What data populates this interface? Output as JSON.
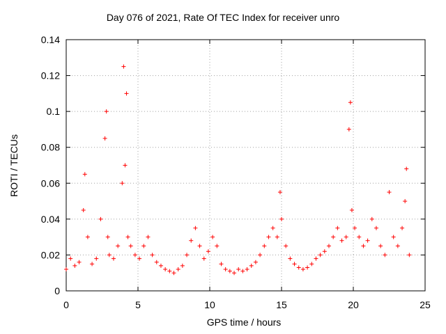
{
  "chart_data": {
    "type": "scatter",
    "title": "Day 076 of 2021, Rate Of TEC Index for receiver unro",
    "xlabel": "GPS time / hours",
    "ylabel": "ROTI / TECUs",
    "xlim": [
      0,
      25
    ],
    "ylim": [
      0,
      0.14
    ],
    "xticks": [
      0,
      5,
      10,
      15,
      20,
      25
    ],
    "yticks": [
      0,
      0.02,
      0.04,
      0.06,
      0.08,
      0.1,
      0.12,
      0.14
    ],
    "xtick_labels": [
      "0",
      "5",
      "10",
      "15",
      "20",
      "25"
    ],
    "ytick_labels": [
      "0",
      "0.02",
      "0.04",
      "0.06",
      "0.08",
      "0.1",
      "0.12",
      "0.14"
    ],
    "grid": true,
    "marker": "+",
    "color": "#ff0000",
    "series": [
      {
        "x": [
          0.0,
          0.3,
          0.6,
          0.9,
          1.2,
          1.3,
          1.5,
          1.8,
          2.1,
          2.4,
          2.7,
          2.8,
          2.9,
          3.0,
          3.3,
          3.6,
          3.9,
          4.0,
          4.1,
          4.2,
          4.3,
          4.5,
          4.8,
          5.1,
          5.4,
          5.7,
          6.0,
          6.3,
          6.6,
          6.9,
          7.2,
          7.5,
          7.8,
          8.1,
          8.4,
          8.7,
          9.0,
          9.3,
          9.6,
          9.9,
          10.2,
          10.5,
          10.8,
          11.1,
          11.4,
          11.7,
          12.0,
          12.3,
          12.6,
          12.9,
          13.2,
          13.5,
          13.8,
          14.1,
          14.4,
          14.7,
          14.9,
          15.0,
          15.3,
          15.6,
          15.9,
          16.2,
          16.5,
          16.8,
          17.1,
          17.4,
          17.7,
          18.0,
          18.3,
          18.6,
          18.9,
          19.2,
          19.5,
          19.7,
          19.8,
          19.9,
          20.1,
          20.4,
          20.7,
          21.0,
          21.3,
          21.6,
          21.9,
          22.2,
          22.5,
          22.8,
          23.1,
          23.4,
          23.6,
          23.7,
          23.9
        ],
        "y": [
          0.012,
          0.018,
          0.014,
          0.016,
          0.045,
          0.065,
          0.03,
          0.015,
          0.018,
          0.04,
          0.085,
          0.1,
          0.03,
          0.02,
          0.018,
          0.025,
          0.06,
          0.125,
          0.07,
          0.11,
          0.03,
          0.025,
          0.02,
          0.018,
          0.025,
          0.03,
          0.02,
          0.016,
          0.014,
          0.012,
          0.011,
          0.01,
          0.012,
          0.014,
          0.02,
          0.028,
          0.035,
          0.025,
          0.018,
          0.022,
          0.03,
          0.025,
          0.015,
          0.012,
          0.011,
          0.01,
          0.012,
          0.011,
          0.012,
          0.014,
          0.016,
          0.02,
          0.025,
          0.03,
          0.035,
          0.03,
          0.055,
          0.04,
          0.025,
          0.018,
          0.015,
          0.013,
          0.012,
          0.013,
          0.015,
          0.018,
          0.02,
          0.022,
          0.025,
          0.03,
          0.035,
          0.028,
          0.03,
          0.09,
          0.105,
          0.045,
          0.035,
          0.03,
          0.025,
          0.028,
          0.04,
          0.035,
          0.025,
          0.02,
          0.055,
          0.03,
          0.025,
          0.035,
          0.05,
          0.068,
          0.02
        ]
      }
    ]
  }
}
